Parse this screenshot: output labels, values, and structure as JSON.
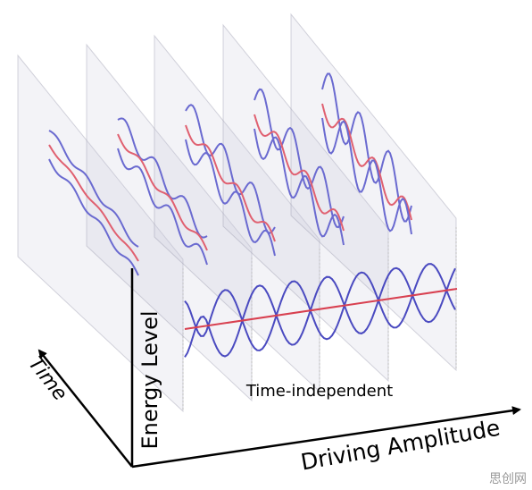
{
  "axes": {
    "y_label": "Energy Level",
    "depth_label": "Time",
    "x_label": "Driving Amplitude"
  },
  "annotation": "Time-independent",
  "watermark": "思创网"
}
